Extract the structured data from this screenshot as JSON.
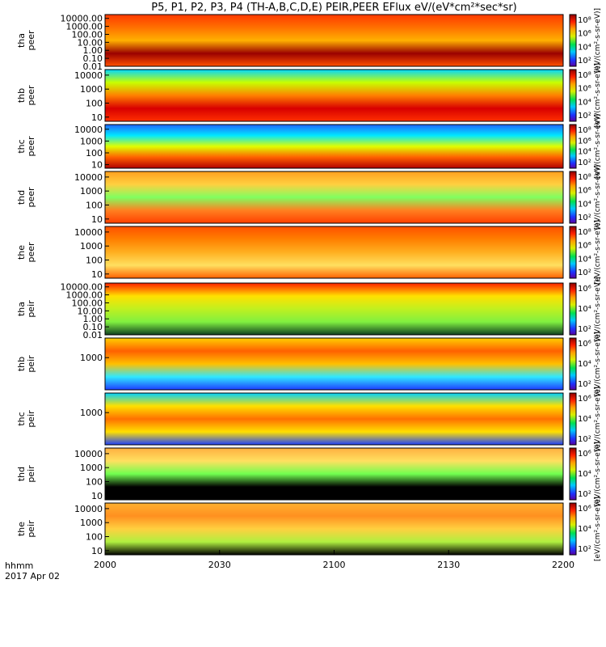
{
  "chart_data": {
    "type": "heatmap",
    "title": "P5, P1, P2, P3, P4 (TH-A,B,C,D,E) PEIR,PEER EFlux eV/(eV*cm²*sec*sr)",
    "xlabel": "hhmm",
    "date_label": "2017 Apr 02",
    "x_ticks": [
      "2000",
      "2030",
      "2100",
      "2130",
      "2200"
    ],
    "x_range": [
      "20:00",
      "22:00"
    ],
    "y_scale": "log",
    "colorbar_scale": "log",
    "colormap": "rainbow (purple-blue-cyan-green-yellow-orange-red-darkred)",
    "panels": [
      {
        "label": "tha\npeer",
        "line1": "tha",
        "line2": "peer",
        "ylim": [
          0.01,
          30000
        ],
        "yticks": [
          "10000.00",
          "1000.00",
          "100.00",
          "10.00",
          "1.00",
          "0.10",
          "0.01"
        ],
        "cb_ticks": [
          "10⁸",
          "10⁶",
          "10⁴",
          "10²"
        ],
        "units": "[eV/(cm²-s-sr-eV)]"
      },
      {
        "label": "thb\npeer",
        "line1": "thb",
        "line2": "peer",
        "ylim": [
          5,
          25000
        ],
        "yticks": [
          "10000",
          "1000",
          "100",
          "10"
        ],
        "cb_ticks": [
          "10⁸",
          "10⁶",
          "10⁴",
          "10²"
        ],
        "units": "[eV/(cm²-s-sr-eV)]"
      },
      {
        "label": "thc\npeer",
        "line1": "thc",
        "line2": "peer",
        "ylim": [
          5,
          25000
        ],
        "yticks": [
          "10000",
          "1000",
          "100",
          "10"
        ],
        "cb_ticks": [
          "10⁸",
          "10⁶",
          "10⁴",
          "10²"
        ],
        "units": "[eV/(cm²-s-sr-eV)]"
      },
      {
        "label": "thd\npeer",
        "line1": "thd",
        "line2": "peer",
        "ylim": [
          5,
          25000
        ],
        "yticks": [
          "10000",
          "1000",
          "100",
          "10"
        ],
        "cb_ticks": [
          "10⁸",
          "10⁶",
          "10⁴",
          "10²"
        ],
        "units": "[eV/(cm²-s-sr-eV)]"
      },
      {
        "label": "the\npeer",
        "line1": "the",
        "line2": "peer",
        "ylim": [
          5,
          25000
        ],
        "yticks": [
          "10000",
          "1000",
          "100",
          "10"
        ],
        "cb_ticks": [
          "10⁸",
          "10⁶",
          "10⁴",
          "10²"
        ],
        "units": "[eV/(cm²-s-sr-eV)]"
      },
      {
        "label": "tha\npeir",
        "line1": "tha",
        "line2": "peir",
        "ylim": [
          0.01,
          30000
        ],
        "yticks": [
          "10000.00",
          "1000.00",
          "100.00",
          "10.00",
          "1.00",
          "0.10",
          "0.01"
        ],
        "cb_ticks": [
          "10⁶",
          "10⁴",
          "10²"
        ],
        "units": "[eV/(cm²-s-sr-eV)]"
      },
      {
        "label": "thb\npeir",
        "line1": "thb",
        "line2": "peir",
        "ylim": [
          5,
          25000
        ],
        "yticks": [
          "1000"
        ],
        "cb_ticks": [
          "10⁶",
          "10⁴",
          "10²"
        ],
        "units": "[eV/(cm²-s-sr-eV)]"
      },
      {
        "label": "thc\npeir",
        "line1": "thc",
        "line2": "peir",
        "ylim": [
          5,
          25000
        ],
        "yticks": [
          "1000"
        ],
        "cb_ticks": [
          "10⁶",
          "10⁴",
          "10²"
        ],
        "units": "[eV/(cm²-s-sr-eV)]"
      },
      {
        "label": "thd\npeir",
        "line1": "thd",
        "line2": "peir",
        "ylim": [
          5,
          25000
        ],
        "yticks": [
          "10000",
          "1000",
          "100",
          "10"
        ],
        "cb_ticks": [
          "10⁶",
          "10⁴",
          "10²"
        ],
        "units": "[eV/(cm²-s-sr-eV)]"
      },
      {
        "label": "the\npeir",
        "line1": "the",
        "line2": "peir",
        "ylim": [
          5,
          25000
        ],
        "yticks": [
          "10000",
          "1000",
          "100",
          "10"
        ],
        "cb_ticks": [
          "10⁶",
          "10⁴",
          "10²"
        ],
        "units": "[eV/(cm²-s-sr-eV)]"
      }
    ]
  }
}
